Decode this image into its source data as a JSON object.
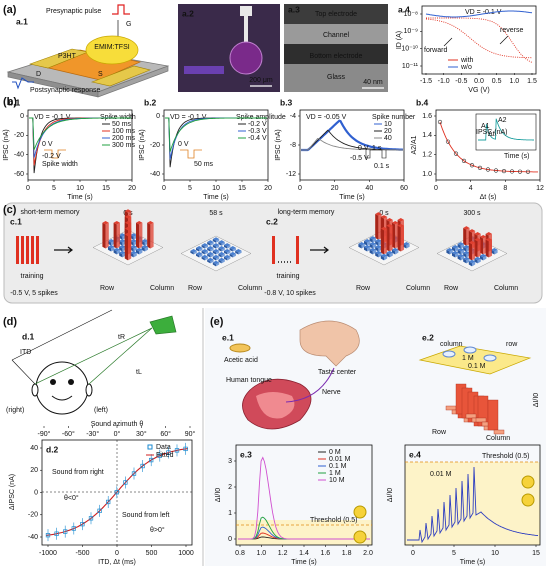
{
  "a": {
    "label": "(a)",
    "a1": {
      "label": "a.1",
      "pulse": "Presynaptic pulse",
      "gate": "G",
      "electrolyte": "EMIM:TFSI",
      "channel": "P3HT",
      "drain": "D",
      "source": "S",
      "response": "Postsynaptic response"
    },
    "a2": {
      "label": "a.2",
      "scale": "200 μm"
    },
    "a3": {
      "label": "a.3",
      "layers": [
        "Top electrode",
        "Channel",
        "Bottom electrode",
        "Glass"
      ],
      "scale": "40 nm"
    },
    "a4": {
      "label": "a.4",
      "note": "VD = -0.1 V",
      "ylabel": "ID (A)",
      "yticks": [
        "10⁻⁸",
        "10⁻⁹",
        "10⁻¹⁰",
        "10⁻¹¹"
      ],
      "xlabel": "VG (V)",
      "xticks": [
        "-1.5",
        "-1.0",
        "-0.5",
        "0.0",
        "0.5",
        "1.0",
        "1.5"
      ],
      "forward": "forward",
      "reverse": "reverse",
      "legend": [
        "with",
        "w/o"
      ]
    }
  },
  "b": {
    "label": "(b)",
    "plots": [
      {
        "label": "b.1",
        "note": "VD = -0.1 V",
        "ylabel": "IPSC (nA)",
        "yticks": [
          "0",
          "-20",
          "-40",
          "-60"
        ],
        "xlabel": "Time (s)",
        "xticks": [
          "0",
          "5",
          "10",
          "15",
          "20"
        ],
        "legend_title": "Spike width",
        "legend": [
          "50 ms",
          "100 ms",
          "200 ms",
          "300 ms"
        ],
        "inset": [
          "0 V",
          "-0.2 V",
          "Spike width"
        ]
      },
      {
        "label": "b.2",
        "note": "VD = -0.1 V",
        "ylabel": "IPSC (nA)",
        "yticks": [
          "0",
          "-20",
          "-40"
        ],
        "xlabel": "Time (s)",
        "xticks": [
          "0",
          "5",
          "10",
          "15",
          "20"
        ],
        "legend_title": "Spike amplitude",
        "legend": [
          "-0.2 V",
          "-0.3 V",
          "-0.4 V"
        ],
        "inset": [
          "0 V",
          "50 ms"
        ]
      },
      {
        "label": "b.3",
        "note": "VD = -0.05 V",
        "ylabel": "IPSC (nA)",
        "yticks": [
          "-4",
          "-8",
          "-12"
        ],
        "xlabel": "Time (s)",
        "xticks": [
          "0",
          "20",
          "40",
          "60"
        ],
        "legend_title": "Spike number",
        "legend": [
          "10",
          "20",
          "40"
        ],
        "inset": [
          "0 V",
          "-0.5 V",
          "1 s",
          "0.1 s"
        ]
      },
      {
        "label": "b.4",
        "ylabel": "A2/A1",
        "yticks": [
          "1.6",
          "1.4",
          "1.2",
          "1.0"
        ],
        "xlabel": "Δt (s)",
        "xticks": [
          "0",
          "4",
          "8",
          "12"
        ],
        "inset": [
          "A1",
          "A2",
          "Δt",
          "IPSC (nA)",
          "Time (s)"
        ]
      }
    ]
  },
  "c": {
    "label": "(c)",
    "c1": {
      "label": "c.1",
      "memory": "short-term memory",
      "training": "training",
      "condition": "-0.5 V, 5 spikes",
      "times": [
        "0 s",
        "58 s"
      ]
    },
    "c2": {
      "label": "c.2",
      "memory": "long-term memory",
      "training": "training",
      "condition": "-0.8 V, 10 spikes",
      "times": [
        "0 s",
        "300 s"
      ]
    },
    "axes": [
      "Row",
      "Column"
    ]
  },
  "d": {
    "label": "(d)",
    "d1": {
      "label": "d.1",
      "itd": "ITD",
      "right": "(right)",
      "left": "(left)",
      "tr": "tR",
      "tl": "tL"
    },
    "d2": {
      "label": "d.2",
      "title": "Sound azimuth θ",
      "top_ticks": [
        "-90°",
        "-60°",
        "-30°",
        "0°",
        "30°",
        "60°",
        "90°"
      ],
      "legend": [
        "Data",
        "Fitted"
      ],
      "ylabel": "ΔIPSC (nA)",
      "yticks": [
        "40",
        "20",
        "0",
        "-20",
        "-40"
      ],
      "xlabel": "ITD, Δt (ms)",
      "xticks": [
        "-1000",
        "-500",
        "0",
        "500",
        "1000"
      ],
      "right_note": "Sound from right",
      "right_angle": "θ<0°",
      "left_note": "Sound from left",
      "left_angle": "θ>0°"
    }
  },
  "e": {
    "label": "(e)",
    "e1": {
      "label": "e.1",
      "acid": "Acetic acid",
      "center": "Taste center",
      "nerve": "Nerve",
      "tongue": "Human tongue"
    },
    "e2": {
      "label": "e.2",
      "column": "column",
      "row": "row",
      "high": "1 M",
      "low": "0.1 M",
      "zlabel": "ΔI/I0",
      "axes": [
        "Row",
        "Column"
      ]
    },
    "e3": {
      "label": "e.3",
      "legend": [
        "0 M",
        "0.01 M",
        "0.1 M",
        "1 M",
        "10 M"
      ],
      "threshold": "Threshold (0.5)",
      "ylabel": "ΔI/I0",
      "yticks": [
        "0",
        "1",
        "2",
        "3"
      ],
      "xlabel": "Time (s)",
      "xticks": [
        "0.8",
        "1.0",
        "1.2",
        "1.4",
        "1.6",
        "1.8",
        "2.0"
      ]
    },
    "e4": {
      "label": "e.4",
      "note": "0.01 M",
      "threshold": "Threshold (0.5)",
      "ylabel": "ΔI/I0",
      "xlabel": "Time (s)",
      "xticks": [
        "0",
        "5",
        "10",
        "15"
      ]
    }
  }
}
